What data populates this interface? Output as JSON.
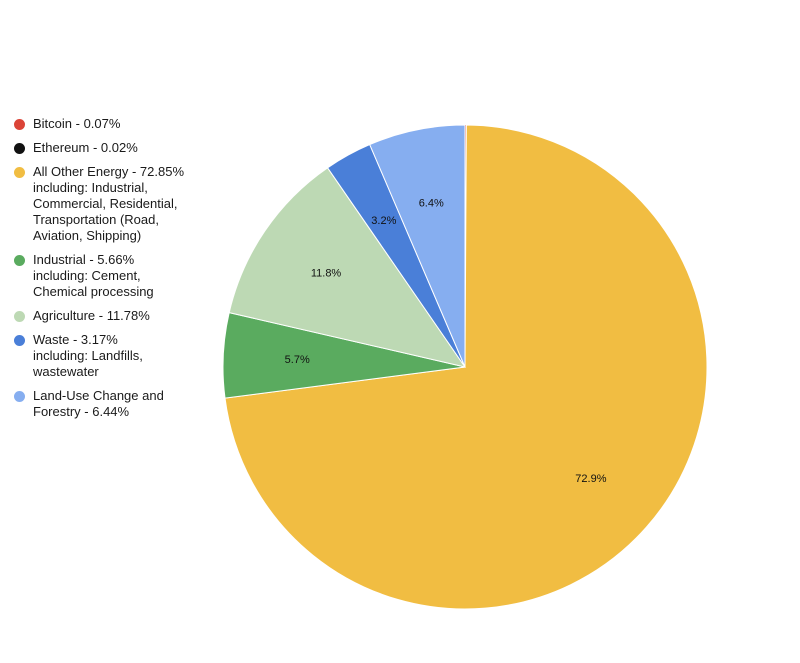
{
  "chart_data": {
    "type": "pie",
    "title": "",
    "legend_position": "left",
    "start_angle_deg": 0,
    "direction": "clockwise",
    "slices": [
      {
        "name": "Bitcoin",
        "value": 0.07,
        "color": "#db4437",
        "label": "",
        "legend_lines": [
          "Bitcoin - 0.07%"
        ]
      },
      {
        "name": "Ethereum",
        "value": 0.02,
        "color": "#111111",
        "label": "",
        "legend_lines": [
          "Ethereum - 0.02%"
        ]
      },
      {
        "name": "All Other Energy",
        "value": 72.85,
        "color": "#f1bd42",
        "label": "72.9%",
        "legend_lines": [
          "All Other Energy - 72.85%",
          "including: Industrial,",
          "Commercial, Residential,",
          "Transportation (Road,",
          "Aviation, Shipping)"
        ]
      },
      {
        "name": "Industrial",
        "value": 5.66,
        "color": "#5aab5f",
        "label": "5.7%",
        "legend_lines": [
          "Industrial - 5.66%",
          "including: Cement,",
          "Chemical processing"
        ]
      },
      {
        "name": "Agriculture",
        "value": 11.78,
        "color": "#bdd9b4",
        "label": "11.8%",
        "legend_lines": [
          "Agriculture - 11.78%"
        ]
      },
      {
        "name": "Waste",
        "value": 3.17,
        "color": "#4a7fd8",
        "label": "3.2%",
        "legend_lines": [
          "Waste - 3.17%",
          "including: Landfills,",
          "wastewater"
        ]
      },
      {
        "name": "Land-Use Change and Forestry",
        "value": 6.44,
        "color": "#86aef0",
        "label": "6.4%",
        "legend_lines": [
          "Land-Use Change and",
          "Forestry - 6.44%"
        ]
      }
    ]
  }
}
